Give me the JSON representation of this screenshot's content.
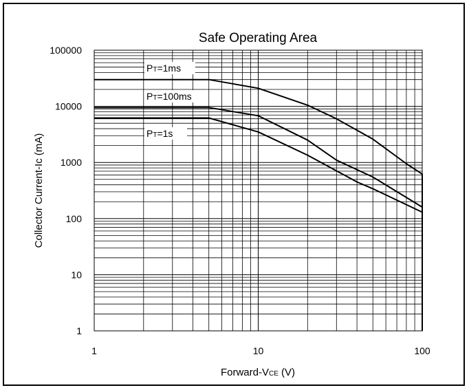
{
  "chart_data": {
    "type": "line",
    "title": "Safe Operating Area",
    "xlabel": {
      "main": "Forward-V",
      "sub": "CE",
      "unit": " (V)"
    },
    "ylabel": "Collector Current-Ic (mA)",
    "xscale": "log",
    "yscale": "log",
    "xlim": [
      1,
      100
    ],
    "ylim": [
      1,
      100000
    ],
    "grid": true,
    "xticks": [
      1,
      10,
      100
    ],
    "xtick_labels": [
      "1",
      "10",
      "100"
    ],
    "yticks": [
      1,
      10,
      100,
      1000,
      10000,
      100000
    ],
    "ytick_labels": [
      "1",
      "10",
      "100",
      "1000",
      "10000",
      "100000"
    ],
    "series": [
      {
        "label": {
          "main": "P",
          "sub": "T",
          "rest": "=1ms"
        },
        "points": [
          [
            1,
            30000
          ],
          [
            5,
            30000
          ],
          [
            10,
            21000
          ],
          [
            20,
            10500
          ],
          [
            30,
            6000
          ],
          [
            50,
            2600
          ],
          [
            80,
            950
          ],
          [
            100,
            620
          ],
          [
            100,
            1
          ]
        ]
      },
      {
        "label": {
          "main": "P",
          "sub": "T",
          "rest": "=100ms"
        },
        "points": [
          [
            1,
            9500
          ],
          [
            5,
            9500
          ],
          [
            10,
            6800
          ],
          [
            20,
            2500
          ],
          [
            30,
            1100
          ],
          [
            50,
            550
          ],
          [
            100,
            160
          ]
        ]
      },
      {
        "label": {
          "main": "P",
          "sub": "T",
          "rest": "=1s"
        },
        "points": [
          [
            1,
            6200
          ],
          [
            5,
            6200
          ],
          [
            10,
            3500
          ],
          [
            20,
            1350
          ],
          [
            40,
            450
          ],
          [
            50,
            340
          ],
          [
            100,
            130
          ]
        ]
      }
    ],
    "line_color": "#000000"
  }
}
